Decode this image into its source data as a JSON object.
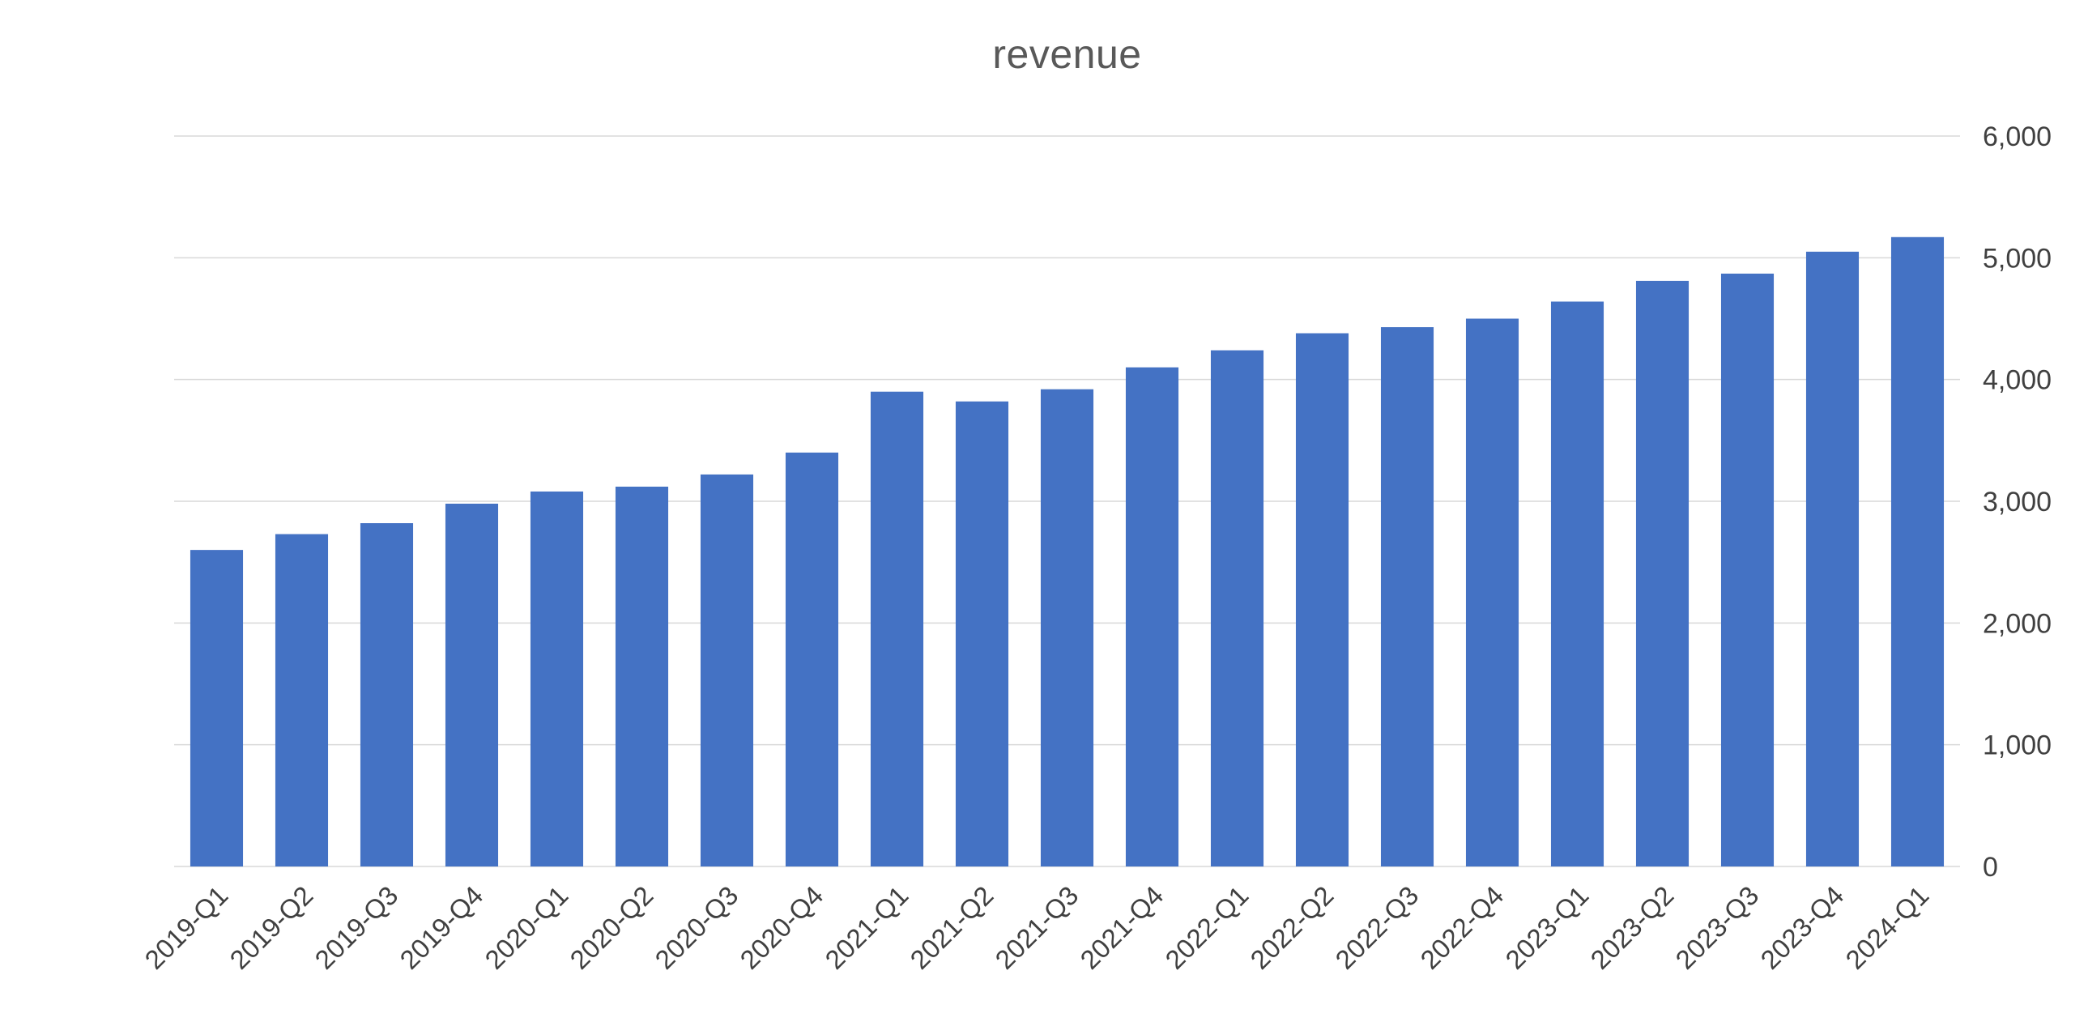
{
  "chart_data": {
    "type": "bar",
    "title": "revenue",
    "categories": [
      "2019-Q1",
      "2019-Q2",
      "2019-Q3",
      "2019-Q4",
      "2020-Q1",
      "2020-Q2",
      "2020-Q3",
      "2020-Q4",
      "2021-Q1",
      "2021-Q2",
      "2021-Q3",
      "2021-Q4",
      "2022-Q1",
      "2022-Q2",
      "2022-Q3",
      "2022-Q4",
      "2023-Q1",
      "2023-Q2",
      "2023-Q3",
      "2023-Q4",
      "2024-Q1"
    ],
    "values": [
      2600,
      2730,
      2820,
      2980,
      3080,
      3120,
      3220,
      3400,
      3900,
      3820,
      3920,
      4100,
      4240,
      4380,
      4430,
      4500,
      4640,
      4810,
      4870,
      5050,
      5170
    ],
    "xlabel": "",
    "ylabel": "",
    "ylim": [
      0,
      6000
    ],
    "ytick_step": 1000,
    "ytick_labels": [
      "0",
      "1,000",
      "2,000",
      "3,000",
      "4,000",
      "5,000",
      "6,000"
    ],
    "y_axis_side": "right",
    "grid": true,
    "legend": "none",
    "colors": {
      "bar": "#4472C4",
      "gridline": "#D9D9D9",
      "title": "#595959",
      "axis_label": "#404040"
    }
  }
}
